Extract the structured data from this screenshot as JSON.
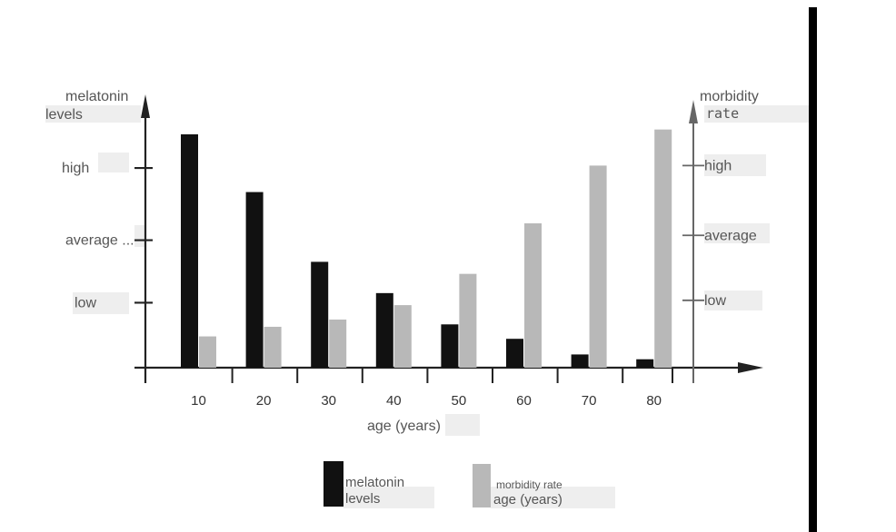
{
  "chart_data": {
    "type": "bar",
    "xlabel": "age (years)",
    "categories": [
      "10",
      "20",
      "30",
      "40",
      "50",
      "60",
      "70",
      "80"
    ],
    "series": [
      {
        "name": "melatonin levels",
        "color": "#111111",
        "axis": "left",
        "values": [
          97,
          73,
          44,
          31,
          18,
          12,
          5.5,
          3.5
        ]
      },
      {
        "name": "morbidity rate",
        "color": "#b8b8b8",
        "axis": "right",
        "values": [
          13,
          17,
          20,
          26,
          39,
          60,
          84,
          99
        ]
      }
    ],
    "ylim": [
      0,
      100
    ],
    "y_left": {
      "label_line1": "melatonin",
      "label_line2": "levels",
      "ticks": [
        {
          "label": "high",
          "value": 83
        },
        {
          "label": "average ...",
          "value": 53
        },
        {
          "label": "low",
          "value": 27
        }
      ]
    },
    "y_right": {
      "label_line1": "morbidity",
      "label_line2": "rate",
      "ticks": [
        {
          "label": "high",
          "value": 84
        },
        {
          "label": "average",
          "value": 55
        },
        {
          "label": "low",
          "value": 28
        }
      ]
    },
    "legend": {
      "placement": "bottom",
      "items": [
        {
          "lines": [
            "melatonin",
            "levels"
          ],
          "color": "#111111"
        },
        {
          "lines": [
            "morbidity rate",
            "age (years)"
          ],
          "color": "#b8b8b8"
        }
      ]
    }
  }
}
